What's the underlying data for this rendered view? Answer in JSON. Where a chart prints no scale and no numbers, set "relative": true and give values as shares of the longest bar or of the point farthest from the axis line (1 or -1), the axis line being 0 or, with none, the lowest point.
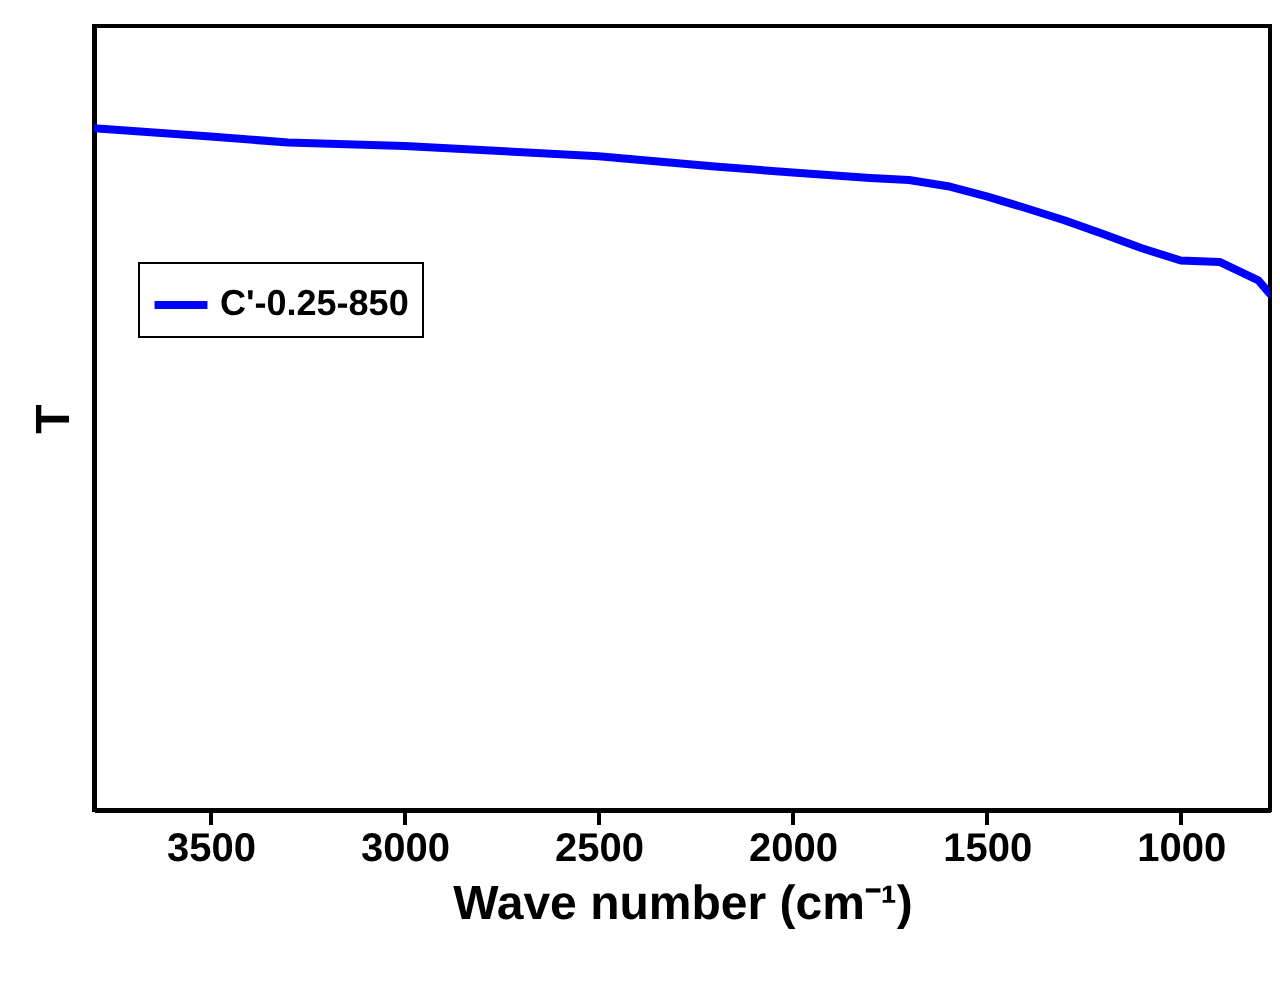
{
  "chart_data": {
    "type": "line",
    "xlabel": "Wave number (cm⁻¹)",
    "ylabel": "T",
    "relative": true,
    "tick_labels": "x",
    "legend": "top left",
    "grid": false,
    "x": [
      3800,
      3500,
      3300,
      3000,
      2500,
      2200,
      2000,
      1800,
      1700,
      1600,
      1500,
      1400,
      1300,
      1200,
      1100,
      1000,
      900,
      800,
      770
    ],
    "xlim": [
      3800,
      770
    ],
    "xticks": [
      3500,
      3000,
      2500,
      2000,
      1500,
      1000
    ],
    "series": [
      {
        "name": "C'-0.25-850",
        "color": "#0000ff",
        "values": [
          1,
          0.988,
          0.979,
          0.974,
          0.959,
          0.944,
          0.935,
          0.927,
          0.924,
          0.915,
          0.9,
          0.883,
          0.865,
          0.845,
          0.824,
          0.806,
          0.804,
          0.777,
          0.757
        ]
      }
    ]
  }
}
